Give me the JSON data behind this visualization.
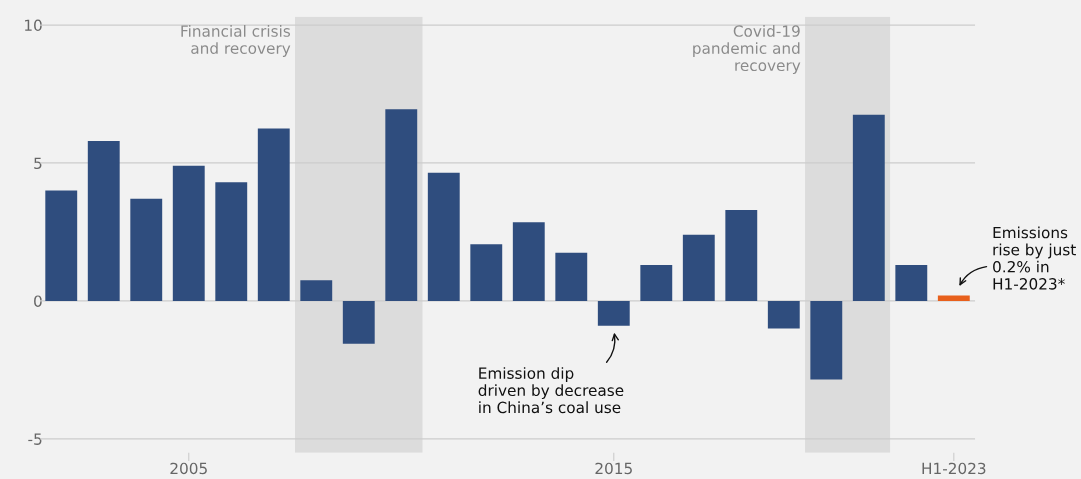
{
  "chart_data": {
    "type": "bar",
    "x": [
      2002,
      2003,
      2004,
      2005,
      2006,
      2007,
      2008,
      2009,
      2010,
      2011,
      2012,
      2013,
      2014,
      2015,
      2016,
      2017,
      2018,
      2019,
      2020,
      2021,
      2022,
      2023
    ],
    "values": [
      4.0,
      5.8,
      3.7,
      4.9,
      4.3,
      6.25,
      0.75,
      -1.55,
      6.95,
      4.65,
      2.05,
      2.85,
      1.75,
      -0.9,
      1.3,
      2.4,
      3.3,
      -1.0,
      -2.85,
      6.75,
      1.3,
      0.2
    ],
    "colors": [
      "#2f4d7e",
      "#2f4d7e",
      "#2f4d7e",
      "#2f4d7e",
      "#2f4d7e",
      "#2f4d7e",
      "#2f4d7e",
      "#2f4d7e",
      "#2f4d7e",
      "#2f4d7e",
      "#2f4d7e",
      "#2f4d7e",
      "#2f4d7e",
      "#2f4d7e",
      "#2f4d7e",
      "#2f4d7e",
      "#2f4d7e",
      "#2f4d7e",
      "#2f4d7e",
      "#2f4d7e",
      "#2f4d7e",
      "#e8601c"
    ],
    "xlim": [
      2001.5,
      2023.5
    ],
    "xticks": [
      2005,
      2015,
      {
        "value": 2023,
        "label": "H1-2023"
      }
    ],
    "ylim": [
      -5.5,
      10.3
    ],
    "yticks": [
      -5,
      0,
      5,
      10
    ],
    "grid": "y",
    "bands": [
      {
        "axis": "x",
        "from": 2007.5,
        "to": 2010.5,
        "label": "Financial crisis\nand recovery",
        "color": "#dcdcdc"
      },
      {
        "axis": "x",
        "from": 2019.5,
        "to": 2021.5,
        "label": "Covid-19\npandemic and\nrecovery",
        "color": "#dcdcdc"
      }
    ],
    "annotations": [
      {
        "text": "Emission dip\ndriven by decrease\nin China’s coal use",
        "x": 2015,
        "y": -0.9
      },
      {
        "text": "Emissions\nrise by just\n0.2% in\nH1-2023*",
        "x": 2023,
        "y": 0.2
      }
    ]
  }
}
